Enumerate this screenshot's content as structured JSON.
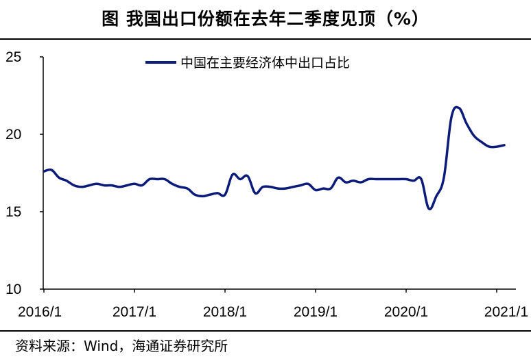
{
  "title": "图  我国出口份额在去年二季度见顶（%）",
  "source": "资料来源：Wind，海通证券研究所",
  "chart_data": {
    "type": "line",
    "title": "图 我国出口份额在去年二季度见顶（%）",
    "xlabel": "",
    "ylabel": "",
    "ylim": [
      10,
      25
    ],
    "yticks": [
      "25",
      "20",
      "15",
      "10"
    ],
    "xticks": [
      "2016/1",
      "2017/1",
      "2018/1",
      "2019/1",
      "2020/1",
      "2021/1"
    ],
    "legend_position": "top-center",
    "grid": false,
    "series": [
      {
        "name": "中国在主要经济体中出口占比",
        "color": "#0a1b7a",
        "x": [
          "2016/1",
          "2016/2",
          "2016/3",
          "2016/4",
          "2016/5",
          "2016/6",
          "2016/7",
          "2016/8",
          "2016/9",
          "2016/10",
          "2016/11",
          "2016/12",
          "2017/1",
          "2017/2",
          "2017/3",
          "2017/4",
          "2017/5",
          "2017/6",
          "2017/7",
          "2017/8",
          "2017/9",
          "2017/10",
          "2017/11",
          "2017/12",
          "2018/1",
          "2018/2",
          "2018/3",
          "2018/4",
          "2018/5",
          "2018/6",
          "2018/7",
          "2018/8",
          "2018/9",
          "2018/10",
          "2018/11",
          "2018/12",
          "2019/1",
          "2019/2",
          "2019/3",
          "2019/4",
          "2019/5",
          "2019/6",
          "2019/7",
          "2019/8",
          "2019/9",
          "2019/10",
          "2019/11",
          "2019/12",
          "2020/1",
          "2020/2",
          "2020/3",
          "2020/4",
          "2020/5",
          "2020/6",
          "2020/7",
          "2020/8",
          "2020/9",
          "2020/10",
          "2020/11",
          "2020/12",
          "2021/1",
          "2021/2"
        ],
        "values": [
          17.6,
          17.7,
          17.2,
          17.0,
          16.7,
          16.6,
          16.7,
          16.8,
          16.7,
          16.7,
          16.6,
          16.7,
          16.8,
          16.7,
          17.1,
          17.1,
          17.1,
          16.8,
          16.6,
          16.5,
          16.1,
          16.0,
          16.1,
          16.2,
          16.1,
          17.4,
          17.1,
          17.3,
          16.2,
          16.6,
          16.6,
          16.5,
          16.5,
          16.6,
          16.7,
          16.8,
          16.4,
          16.5,
          16.5,
          17.2,
          16.9,
          17.0,
          16.9,
          17.1,
          17.1,
          17.1,
          17.1,
          17.1,
          17.1,
          17.0,
          17.1,
          15.2,
          16.0,
          17.2,
          21.1,
          21.7,
          20.7,
          19.9,
          19.5,
          19.2,
          19.2,
          19.3
        ]
      }
    ]
  }
}
